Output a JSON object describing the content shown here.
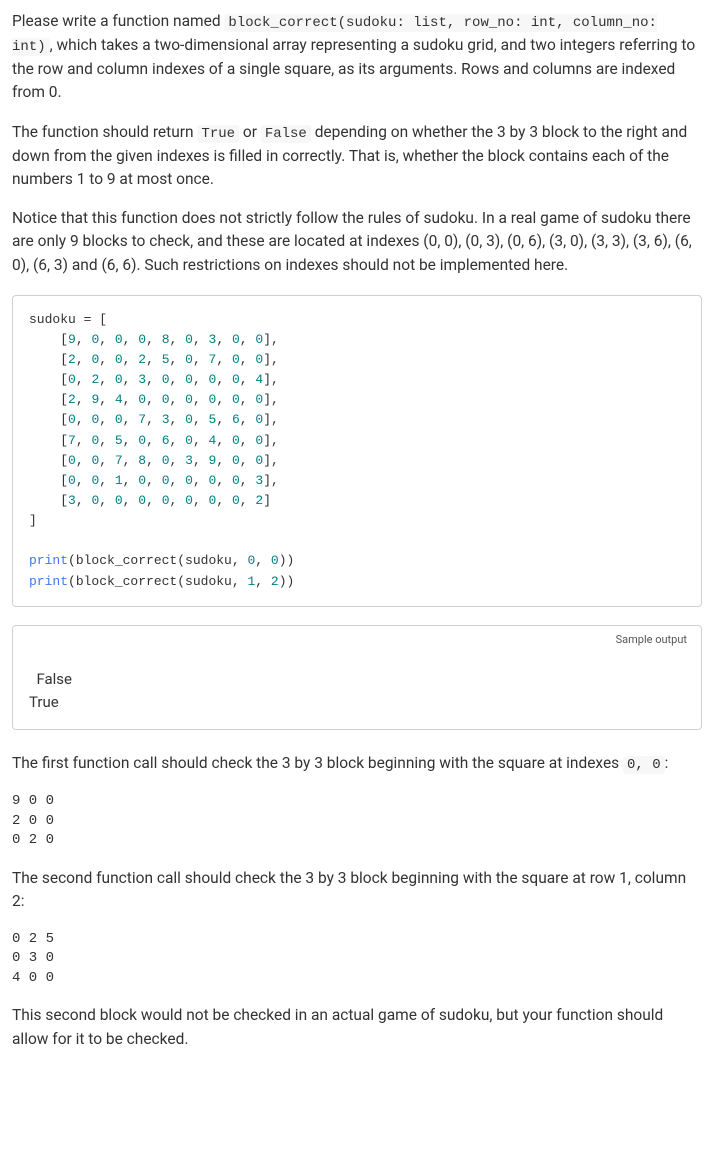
{
  "para1_pre": "Please write a function named ",
  "para1_code": "block_correct(sudoku: list, row_no: int, column_no: int)",
  "para1_post": ", which takes a two-dimensional array representing a sudoku grid, and two integers referring to the row and column indexes of a single square, as its arguments. Rows and columns are indexed from 0.",
  "para2_a": "The function should return ",
  "para2_true": "True",
  "para2_b": " or ",
  "para2_false": "False",
  "para2_c": " depending on whether the 3 by 3 block to the right and down from the given indexes is filled in correctly. That is, whether the block contains each of the numbers 1 to 9 at most once.",
  "para3": "Notice that this function does not strictly follow the rules of sudoku. In a real game of sudoku there are only 9 blocks to check, and these are located at indexes (0, 0), (0, 3), (0, 6), (3, 0), (3, 3), (3, 6), (6, 0), (6, 3) and (6, 6). Such restrictions on indexes should not be implemented here.",
  "code_header": "sudoku = [",
  "code_rows": [
    "[9, 0, 0, 0, 8, 0, 3, 0, 0],",
    "[2, 0, 0, 2, 5, 0, 7, 0, 0],",
    "[0, 2, 0, 3, 0, 0, 0, 0, 4],",
    "[2, 9, 4, 0, 0, 0, 0, 0, 0],",
    "[0, 0, 0, 7, 3, 0, 5, 6, 0],",
    "[7, 0, 5, 0, 6, 0, 4, 0, 0],",
    "[0, 0, 7, 8, 0, 3, 9, 0, 0],",
    "[0, 0, 1, 0, 0, 0, 0, 0, 3],",
    "[3, 0, 0, 0, 0, 0, 0, 0, 2]"
  ],
  "code_footer": "]",
  "code_print1_fn": "print",
  "code_print1_arg": "(block_correct(sudoku, ",
  "code_print1_n1": "0",
  "code_print1_mid": ", ",
  "code_print1_n2": "0",
  "code_print1_end": "))",
  "code_print2_fn": "print",
  "code_print2_arg": "(block_correct(sudoku, ",
  "code_print2_n1": "1",
  "code_print2_mid": ", ",
  "code_print2_n2": "2",
  "code_print2_end": "))",
  "sample_output_label": "Sample output",
  "sample_output_text": "False\nTrue",
  "para4_a": "The first function call should check the 3 by 3 block beginning with the square at indexes ",
  "para4_code": "0, 0",
  "para4_b": ":",
  "block1": "9 0 0\n2 0 0\n0 2 0",
  "para5": "The second function call should check the 3 by 3 block beginning with the square at row 1, column 2:",
  "block2": "0 2 5\n0 3 0\n4 0 0",
  "para6": "This second block would not be checked in an actual game of sudoku, but your function should allow for it to be checked."
}
